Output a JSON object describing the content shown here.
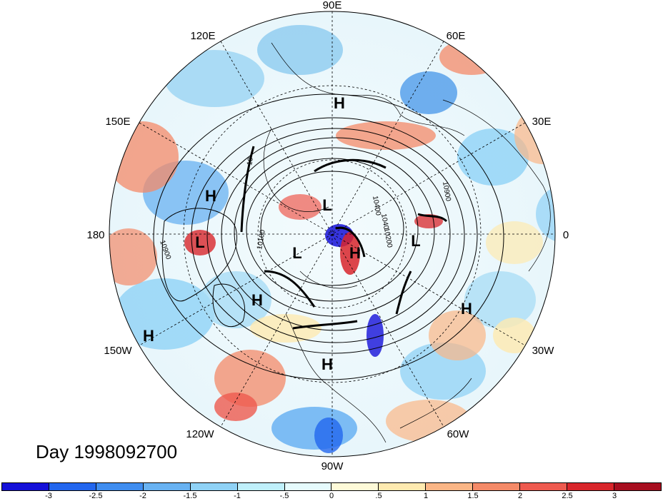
{
  "title": "Day 1998092700",
  "longitude_labels": [
    {
      "id": "lon-90e",
      "text": "90E",
      "angle": 90
    },
    {
      "id": "lon-60e",
      "text": "60E",
      "angle": 60
    },
    {
      "id": "lon-30e",
      "text": "30E",
      "angle": 30
    },
    {
      "id": "lon-0",
      "text": "0",
      "angle": 0
    },
    {
      "id": "lon-30w",
      "text": "30W",
      "angle": -30
    },
    {
      "id": "lon-60w",
      "text": "60W",
      "angle": -60
    },
    {
      "id": "lon-90w",
      "text": "90W",
      "angle": -90
    },
    {
      "id": "lon-120w",
      "text": "120W",
      "angle": -120
    },
    {
      "id": "lon-150w",
      "text": "150W",
      "angle": -150
    },
    {
      "id": "lon-180",
      "text": "180",
      "angle": 180
    },
    {
      "id": "lon-150e",
      "text": "150E",
      "angle": 150
    },
    {
      "id": "lon-120e",
      "text": "120E",
      "angle": 120
    }
  ],
  "pressure_centers": [
    {
      "type": "H",
      "note": "over Arctic Siberia"
    },
    {
      "type": "H",
      "note": "NW Pacific"
    },
    {
      "type": "L",
      "note": "W Pacific"
    },
    {
      "type": "L",
      "note": "Arctic central"
    },
    {
      "type": "L",
      "note": "Canadian Arctic"
    },
    {
      "type": "H",
      "note": "Greenland"
    },
    {
      "type": "L",
      "note": "Europe"
    },
    {
      "type": "H",
      "note": "Gulf of Alaska"
    },
    {
      "type": "H",
      "note": "central Pacific"
    },
    {
      "type": "H",
      "note": "Atlantic"
    },
    {
      "type": "H",
      "note": "North America"
    }
  ],
  "contour_labels": [
    "10900",
    "10400",
    "10100",
    "1040",
    "10200",
    "10900",
    "10"
  ],
  "colorbar": {
    "colors": [
      "#1410d8",
      "#2266ee",
      "#3f8df0",
      "#68b2f2",
      "#8fd2f6",
      "#bff0fb",
      "#e6fbfd",
      "#fefad8",
      "#feeab0",
      "#fbb686",
      "#f48a68",
      "#ee5a4f",
      "#d8252b",
      "#a70e1f"
    ],
    "ticks": [
      "-3",
      "-2.5",
      "-2",
      "-1.5",
      "-1",
      "-.5",
      "0",
      ".5",
      "1",
      "1.5",
      "2",
      "2.5",
      "3"
    ]
  }
}
